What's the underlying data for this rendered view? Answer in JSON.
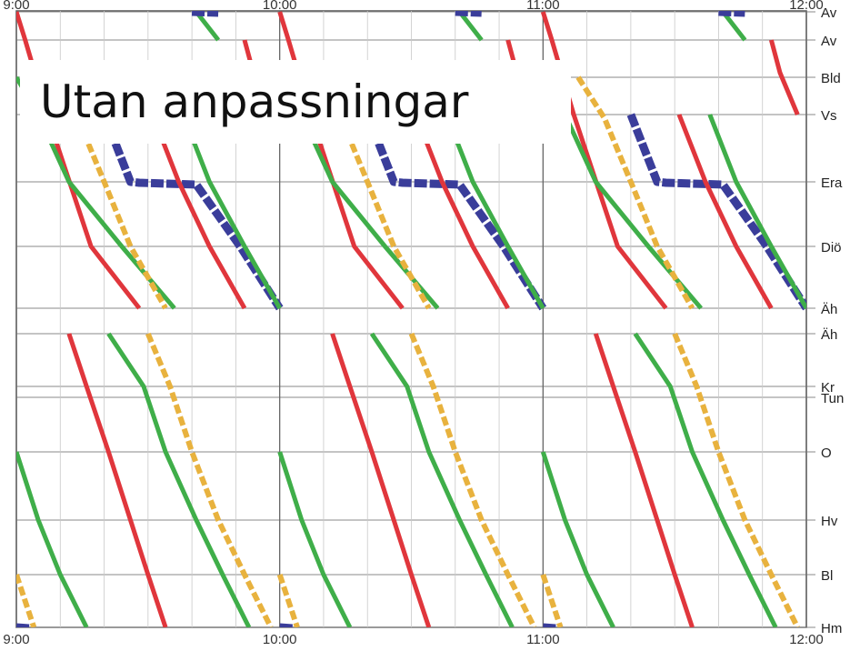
{
  "title": "Utan anpassningar",
  "chart_data": {
    "type": "line",
    "title": "Utan anpassningar",
    "chart_kind": "time-distance train graph",
    "x_axis": {
      "ticks": [
        "9:00",
        "10:00",
        "11:00",
        "12:00"
      ],
      "range_minutes": [
        0,
        180
      ]
    },
    "stations": [
      "Av",
      "Av",
      "Bld",
      "Vs",
      "Era",
      "Diö",
      "Äh",
      "Äh",
      "Kr",
      "Tun",
      "O",
      "Hv",
      "Bl",
      "Hm"
    ],
    "grid": true,
    "colors": {
      "red": "#e0363c",
      "green": "#3fae49",
      "yellow": "#e8b23e",
      "blue": "#3a3d9a"
    },
    "pattern": "hourly",
    "series": [
      {
        "color": "red",
        "kind": "line",
        "points": [
          [
            0,
            13
          ],
          [
            2,
            44
          ],
          [
            7,
            126
          ],
          [
            17,
            271
          ],
          [
            28,
            339
          ]
        ]
      },
      {
        "color": "green",
        "kind": "line",
        "points": [
          [
            0,
            85
          ],
          [
            5,
            126
          ],
          [
            12,
            200
          ],
          [
            24,
            271
          ],
          [
            36,
            339
          ]
        ]
      },
      {
        "color": "yellow",
        "kind": "stair",
        "points": [
          [
            8,
            85
          ],
          [
            14,
            130
          ],
          [
            20,
            200
          ],
          [
            26,
            271
          ],
          [
            34,
            339
          ]
        ]
      },
      {
        "color": "blue",
        "kind": "block",
        "points": [
          [
            20,
            126
          ],
          [
            26,
            200
          ],
          [
            28,
            201
          ],
          [
            41,
            203
          ],
          [
            51,
            271
          ],
          [
            60,
            339
          ]
        ]
      },
      {
        "color": "red",
        "kind": "line",
        "points": [
          [
            31,
            126
          ],
          [
            37,
            200
          ],
          [
            44,
            271
          ],
          [
            52,
            339
          ]
        ]
      },
      {
        "color": "green",
        "kind": "line",
        "points": [
          [
            38,
            126
          ],
          [
            44,
            200
          ],
          [
            52,
            271
          ],
          [
            60,
            339
          ]
        ]
      },
      {
        "color": "red",
        "kind": "line",
        "points": [
          [
            52,
            44
          ],
          [
            54,
            80
          ],
          [
            58,
            126
          ]
        ]
      },
      {
        "color": "green",
        "kind": "line",
        "points": [
          [
            41,
            13
          ],
          [
            46,
            44
          ]
        ]
      },
      {
        "color": "blue",
        "kind": "block",
        "points": [
          [
            40,
            13
          ],
          [
            46,
            14
          ]
        ]
      },
      {
        "color": "red",
        "kind": "line",
        "points": [
          [
            12,
            367
          ],
          [
            16,
            425
          ],
          [
            21,
            497
          ],
          [
            26,
            572
          ],
          [
            30,
            632
          ],
          [
            34,
            690
          ]
        ]
      },
      {
        "color": "green",
        "kind": "line",
        "points": [
          [
            21,
            367
          ],
          [
            29,
            425
          ],
          [
            34,
            497
          ],
          [
            41,
            572
          ],
          [
            47,
            632
          ],
          [
            53,
            690
          ]
        ]
      },
      {
        "color": "yellow",
        "kind": "stair",
        "points": [
          [
            30,
            367
          ],
          [
            35,
            425
          ],
          [
            40,
            497
          ],
          [
            46,
            572
          ],
          [
            52,
            632
          ],
          [
            58,
            690
          ]
        ]
      },
      {
        "color": "green",
        "kind": "line",
        "points": [
          [
            0,
            497
          ],
          [
            5,
            572
          ],
          [
            10,
            632
          ],
          [
            16,
            690
          ]
        ]
      },
      {
        "color": "yellow",
        "kind": "stair",
        "points": [
          [
            0,
            632
          ],
          [
            4,
            690
          ]
        ]
      },
      {
        "color": "blue",
        "kind": "block",
        "points": [
          [
            0,
            690
          ],
          [
            3,
            691
          ]
        ]
      }
    ],
    "ylabel": "",
    "xlabel": ""
  }
}
